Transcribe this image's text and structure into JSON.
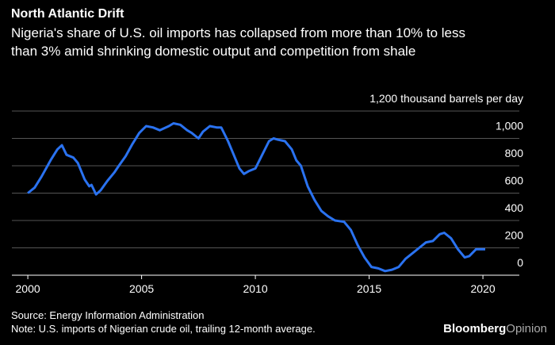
{
  "chart_data": {
    "type": "line",
    "title": "North Atlantic Drift",
    "subtitle": [
      "Nigeria's share of U.S. oil imports has collapsed from more than 10% to less",
      "than 3% amid shrinking domestic output and competition from shale"
    ],
    "x": [
      2000.0,
      2000.3,
      2000.6,
      2001.0,
      2001.3,
      2001.5,
      2001.7,
      2002.0,
      2002.2,
      2002.5,
      2002.7,
      2002.8,
      2003.0,
      2003.2,
      2003.5,
      2003.8,
      2004.0,
      2004.3,
      2004.6,
      2004.9,
      2005.2,
      2005.5,
      2005.8,
      2006.2,
      2006.4,
      2006.7,
      2007.0,
      2007.2,
      2007.5,
      2007.7,
      2008.0,
      2008.3,
      2008.5,
      2008.8,
      2009.0,
      2009.3,
      2009.5,
      2009.7,
      2010.0,
      2010.3,
      2010.6,
      2010.8,
      2011.0,
      2011.3,
      2011.6,
      2011.8,
      2012.0,
      2012.3,
      2012.6,
      2012.9,
      2013.2,
      2013.5,
      2013.9,
      2014.2,
      2014.5,
      2014.8,
      2015.1,
      2015.4,
      2015.7,
      2016.0,
      2016.3,
      2016.6,
      2016.9,
      2017.2,
      2017.5,
      2017.8,
      2018.1,
      2018.3,
      2018.6,
      2018.9,
      2019.2,
      2019.4,
      2019.7,
      2020.1
    ],
    "series": [
      {
        "name": "U.S. imports of Nigerian crude oil",
        "color": "#2a72f0",
        "values": [
          600,
          640,
          720,
          840,
          920,
          950,
          880,
          860,
          820,
          700,
          650,
          660,
          590,
          620,
          690,
          750,
          800,
          870,
          960,
          1040,
          1090,
          1080,
          1060,
          1090,
          1110,
          1100,
          1060,
          1040,
          1000,
          1050,
          1090,
          1080,
          1080,
          980,
          900,
          780,
          740,
          760,
          780,
          880,
          980,
          1000,
          990,
          980,
          920,
          840,
          800,
          650,
          550,
          470,
          430,
          400,
          390,
          330,
          220,
          130,
          60,
          50,
          30,
          40,
          60,
          120,
          160,
          200,
          240,
          250,
          300,
          310,
          270,
          190,
          130,
          140,
          190,
          190
        ]
      }
    ],
    "xlim": [
      1999.3,
      2021.6
    ],
    "xticks": [
      2000,
      2005,
      2010,
      2015,
      2020
    ],
    "ylim": [
      0,
      1200
    ],
    "yticks": [
      0,
      200,
      400,
      600,
      800,
      {
        "value": 1000,
        "label": "1,000"
      },
      {
        "value": 1200,
        "label": "1,200 thousand barrels per day"
      }
    ],
    "grid": true,
    "source": "Source: Energy Information Administration",
    "note": "Note: U.S. imports of Nigerian crude oil, trailing 12-month average.",
    "brand": [
      "Bloomberg",
      "Opinion"
    ]
  }
}
